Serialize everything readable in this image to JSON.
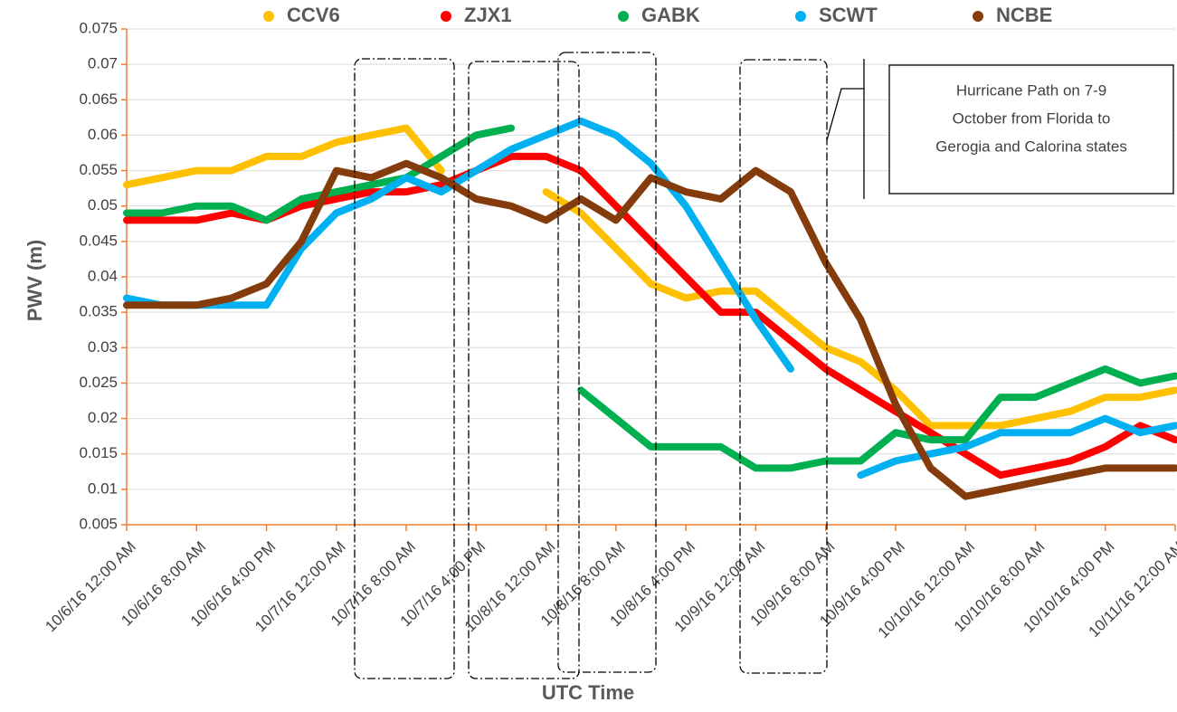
{
  "chart_data": {
    "type": "line",
    "y_label": "PWV (m)",
    "x_label": "UTC Time",
    "legend": "top",
    "grid": true,
    "annotation": [
      "Hurricane Path on 7-9",
      "October  from Florida to",
      "Gerogia and Calorina states"
    ],
    "x": [
      0,
      4,
      8,
      12,
      16,
      20,
      24,
      28,
      32,
      36,
      40,
      44,
      48,
      52,
      56,
      60,
      64,
      68,
      72,
      76,
      80,
      84,
      88,
      92,
      96,
      100,
      104,
      108,
      112,
      116,
      120
    ],
    "xlim": [
      0,
      120
    ],
    "xticks": [
      {
        "value": 0,
        "label": "10/6/16 12:00 AM"
      },
      {
        "value": 8,
        "label": "10/6/16 8:00 AM"
      },
      {
        "value": 16,
        "label": "10/6/16 4:00 PM"
      },
      {
        "value": 24,
        "label": "10/7/16 12:00 AM"
      },
      {
        "value": 32,
        "label": "10/7/16 8:00 AM"
      },
      {
        "value": 40,
        "label": "10/7/16 4:00 PM"
      },
      {
        "value": 48,
        "label": "10/8/16 12:00 AM"
      },
      {
        "value": 56,
        "label": "10/8/16 8:00 AM"
      },
      {
        "value": 64,
        "label": "10/8/16 4:00 PM"
      },
      {
        "value": 72,
        "label": "10/9/16 12:00 AM"
      },
      {
        "value": 80,
        "label": "10/9/16 8:00 AM"
      },
      {
        "value": 88,
        "label": "10/9/16 4:00 PM"
      },
      {
        "value": 96,
        "label": "10/10/16 12:00 AM"
      },
      {
        "value": 104,
        "label": "10/10/16 8:00 AM"
      },
      {
        "value": 112,
        "label": "10/10/16 4:00 PM"
      },
      {
        "value": 120,
        "label": "10/11/16 12:00 AM"
      }
    ],
    "ylim": [
      0.005,
      0.075
    ],
    "yticks": [
      0.005,
      0.01,
      0.015,
      0.02,
      0.025,
      0.03,
      0.035,
      0.04,
      0.045,
      0.05,
      0.055,
      0.06,
      0.065,
      0.07,
      0.075
    ],
    "series": [
      {
        "name": "CCV6",
        "color": "#ffc000",
        "values": [
          0.053,
          0.054,
          0.055,
          0.055,
          0.057,
          0.057,
          0.059,
          0.06,
          0.061,
          0.055,
          null,
          null,
          0.052,
          0.049,
          0.044,
          0.039,
          0.037,
          0.038,
          0.038,
          0.034,
          0.03,
          0.028,
          0.024,
          0.019,
          0.019,
          0.019,
          0.02,
          0.021,
          0.023,
          0.023,
          0.024
        ]
      },
      {
        "name": "ZJX1",
        "color": "#ff0000",
        "values": [
          0.048,
          0.048,
          0.048,
          0.049,
          0.048,
          0.05,
          0.051,
          0.052,
          0.052,
          0.053,
          0.055,
          0.057,
          0.057,
          0.055,
          0.05,
          0.045,
          0.04,
          0.035,
          0.035,
          0.031,
          0.027,
          0.024,
          0.021,
          0.018,
          0.015,
          0.012,
          0.013,
          0.014,
          0.016,
          0.019,
          0.017
        ]
      },
      {
        "name": "GABK",
        "color": "#00b050",
        "values": [
          0.049,
          0.049,
          0.05,
          0.05,
          0.048,
          0.051,
          0.052,
          0.053,
          0.054,
          0.057,
          0.06,
          0.061,
          null,
          0.024,
          0.02,
          0.016,
          0.016,
          0.016,
          0.013,
          0.013,
          0.014,
          0.014,
          0.018,
          0.017,
          0.017,
          0.023,
          0.023,
          0.025,
          0.027,
          0.025,
          0.026
        ]
      },
      {
        "name": "SCWT",
        "color": "#00b0f0",
        "values": [
          0.037,
          0.036,
          0.036,
          0.036,
          0.036,
          0.044,
          0.049,
          0.051,
          0.054,
          0.052,
          0.055,
          0.058,
          0.06,
          0.062,
          0.06,
          0.056,
          0.05,
          0.042,
          0.034,
          0.027,
          null,
          0.012,
          0.014,
          0.015,
          0.016,
          0.018,
          0.018,
          0.018,
          0.02,
          0.018,
          0.019
        ]
      },
      {
        "name": "NCBE",
        "color": "#843c0c",
        "values": [
          0.036,
          0.036,
          0.036,
          0.037,
          0.039,
          0.045,
          0.055,
          0.054,
          0.056,
          0.054,
          0.051,
          0.05,
          0.048,
          0.051,
          0.048,
          0.054,
          0.052,
          0.051,
          0.055,
          0.052,
          0.042,
          0.034,
          0.022,
          0.013,
          0.009,
          0.01,
          0.011,
          0.012,
          0.013,
          0.013,
          0.013
        ]
      }
    ]
  }
}
